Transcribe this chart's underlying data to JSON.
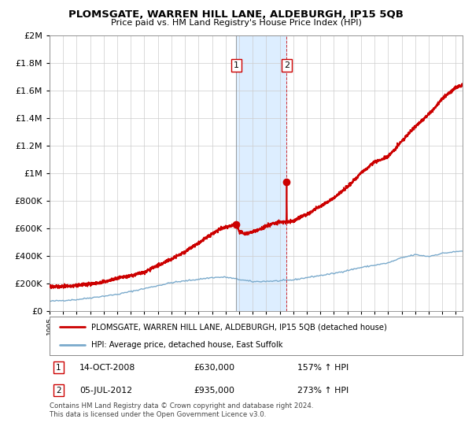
{
  "title": "PLOMSGATE, WARREN HILL LANE, ALDEBURGH, IP15 5QB",
  "subtitle": "Price paid vs. HM Land Registry's House Price Index (HPI)",
  "sale1_date": 2008.79,
  "sale1_price": 630000,
  "sale1_label": "14-OCT-2008",
  "sale1_pct": "157% ↑ HPI",
  "sale2_date": 2012.51,
  "sale2_price": 935000,
  "sale2_label": "05-JUL-2012",
  "sale2_pct": "273% ↑ HPI",
  "property_color": "#cc0000",
  "hpi_color": "#7aaacc",
  "shaded_color": "#ddeeff",
  "legend1": "PLOMSGATE, WARREN HILL LANE, ALDEBURGH, IP15 5QB (detached house)",
  "legend2": "HPI: Average price, detached house, East Suffolk",
  "footer": "Contains HM Land Registry data © Crown copyright and database right 2024.\nThis data is licensed under the Open Government Licence v3.0.",
  "ylim": [
    0,
    2000000
  ],
  "xlim_start": 1995,
  "xlim_end": 2025.5
}
